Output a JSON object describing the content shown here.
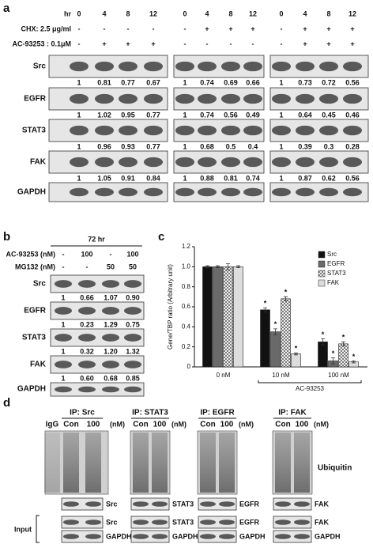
{
  "panel_a": {
    "label": "a",
    "row_labels": {
      "hr": "hr",
      "chx": "CHX: 2.5 μg/ml",
      "ac": "AC-93253 : 0.1μM"
    },
    "proteins": [
      "Src",
      "EGFR",
      "STAT3",
      "FAK"
    ],
    "loading": "GAPDH",
    "groups": [
      {
        "hr": [
          "0",
          "4",
          "8",
          "12"
        ],
        "chx": [
          "-",
          "-",
          "-",
          "-"
        ],
        "ac": [
          "-",
          "+",
          "+",
          "+"
        ],
        "quant": [
          [
            "1",
            "0.81",
            "0.77",
            "0.67"
          ],
          [
            "1",
            "1.02",
            "0.95",
            "0.77"
          ],
          [
            "1",
            "0.96",
            "0.93",
            "0.77"
          ],
          [
            "1",
            "1.05",
            "0.91",
            "0.84"
          ]
        ]
      },
      {
        "hr": [
          "0",
          "4",
          "8",
          "12"
        ],
        "chx": [
          "-",
          "+",
          "+",
          "+"
        ],
        "ac": [
          "-",
          "-",
          "-",
          "-"
        ],
        "quant": [
          [
            "1",
            "0.74",
            "0.69",
            "0.66"
          ],
          [
            "1",
            "0.74",
            "0.56",
            "0.49"
          ],
          [
            "1",
            "0.68",
            "0.5",
            "0.4"
          ],
          [
            "1",
            "0.88",
            "0.81",
            "0.74"
          ]
        ]
      },
      {
        "hr": [
          "0",
          "4",
          "8",
          "12"
        ],
        "chx": [
          "-",
          "+",
          "+",
          "+"
        ],
        "ac": [
          "-",
          "+",
          "+",
          "+"
        ],
        "quant": [
          [
            "1",
            "0.73",
            "0.72",
            "0.56"
          ],
          [
            "1",
            "0.64",
            "0.45",
            "0.46"
          ],
          [
            "1",
            "0.39",
            "0.3",
            "0.28"
          ],
          [
            "1",
            "0.87",
            "0.62",
            "0.56"
          ]
        ]
      }
    ]
  },
  "panel_b": {
    "label": "b",
    "time": "72 hr",
    "row_labels": {
      "ac": "AC-93253 (nM)",
      "mg": "MG132 (nM)"
    },
    "ac": [
      "-",
      "100",
      "-",
      "100"
    ],
    "mg": [
      "-",
      "-",
      "50",
      "50"
    ],
    "proteins": [
      "Src",
      "EGFR",
      "STAT3",
      "FAK"
    ],
    "loading": "GAPDH",
    "quant": [
      [
        "1",
        "0.66",
        "1.07",
        "0.90"
      ],
      [
        "1",
        "0.23",
        "1.29",
        "0.75"
      ],
      [
        "1",
        "0.32",
        "1.20",
        "1.32"
      ],
      [
        "1",
        "0.60",
        "0.68",
        "0.85"
      ]
    ]
  },
  "panel_c": {
    "label": "c"
  },
  "chart_data": {
    "type": "bar",
    "ylabel": "Gene/TBP ratio (Arbitrary unit)",
    "xlabel": "AC-93253",
    "categories": [
      "0 nM",
      "10 nM",
      "100 nM"
    ],
    "ylim": [
      0,
      1.2
    ],
    "yticks": [
      0,
      0.2,
      0.4,
      0.6,
      0.8,
      {
        "value": 1,
        "label": "1.0"
      },
      1.2
    ],
    "legend": "top-right",
    "series": [
      {
        "name": "Src",
        "color": "#111111",
        "values": [
          1,
          0.57,
          0.25
        ],
        "errors": [
          0.01,
          0.02,
          0.03
        ],
        "significance": [
          null,
          "*",
          "*"
        ]
      },
      {
        "name": "EGFR",
        "color": "#6a6a6a",
        "values": [
          1,
          0.35,
          0.06
        ],
        "errors": [
          0.01,
          0.03,
          0.03
        ],
        "significance": [
          null,
          "*",
          "*"
        ]
      },
      {
        "name": "STAT3",
        "color": "#ffffff",
        "pattern": "crosshatch",
        "values": [
          1,
          0.68,
          0.23
        ],
        "errors": [
          0.03,
          0.02,
          0.02
        ],
        "significance": [
          null,
          "*",
          "*"
        ]
      },
      {
        "name": "FAK",
        "color": "#dddddd",
        "values": [
          1,
          0.13,
          0.05
        ],
        "errors": [
          0.01,
          0.01,
          0.01
        ],
        "significance": [
          null,
          "*",
          "*"
        ]
      }
    ]
  },
  "panel_d": {
    "label": "d",
    "blot_label": "Ubiquitin",
    "input_label": "Input",
    "blocks": [
      {
        "ip": "IP: Src",
        "lanes": [
          "IgG",
          "Con",
          "100"
        ],
        "unit": "(nM)",
        "protein": "Src",
        "input": "Src",
        "loading": "GAPDH"
      },
      {
        "ip": "IP: STAT3",
        "lanes": [
          "Con",
          "100"
        ],
        "unit": "(nM)",
        "protein": "STAT3",
        "input": "STAT3",
        "loading": "GAPDH"
      },
      {
        "ip": "IP: EGFR",
        "lanes": [
          "Con",
          "100"
        ],
        "unit": "(nM)",
        "protein": "EGFR",
        "input": "EGFR",
        "loading": "GAPDH"
      },
      {
        "ip": "IP: FAK",
        "lanes": [
          "Con",
          "100"
        ],
        "unit": "(nM)",
        "protein": "FAK",
        "input": "FAK",
        "loading": "GAPDH"
      }
    ]
  }
}
